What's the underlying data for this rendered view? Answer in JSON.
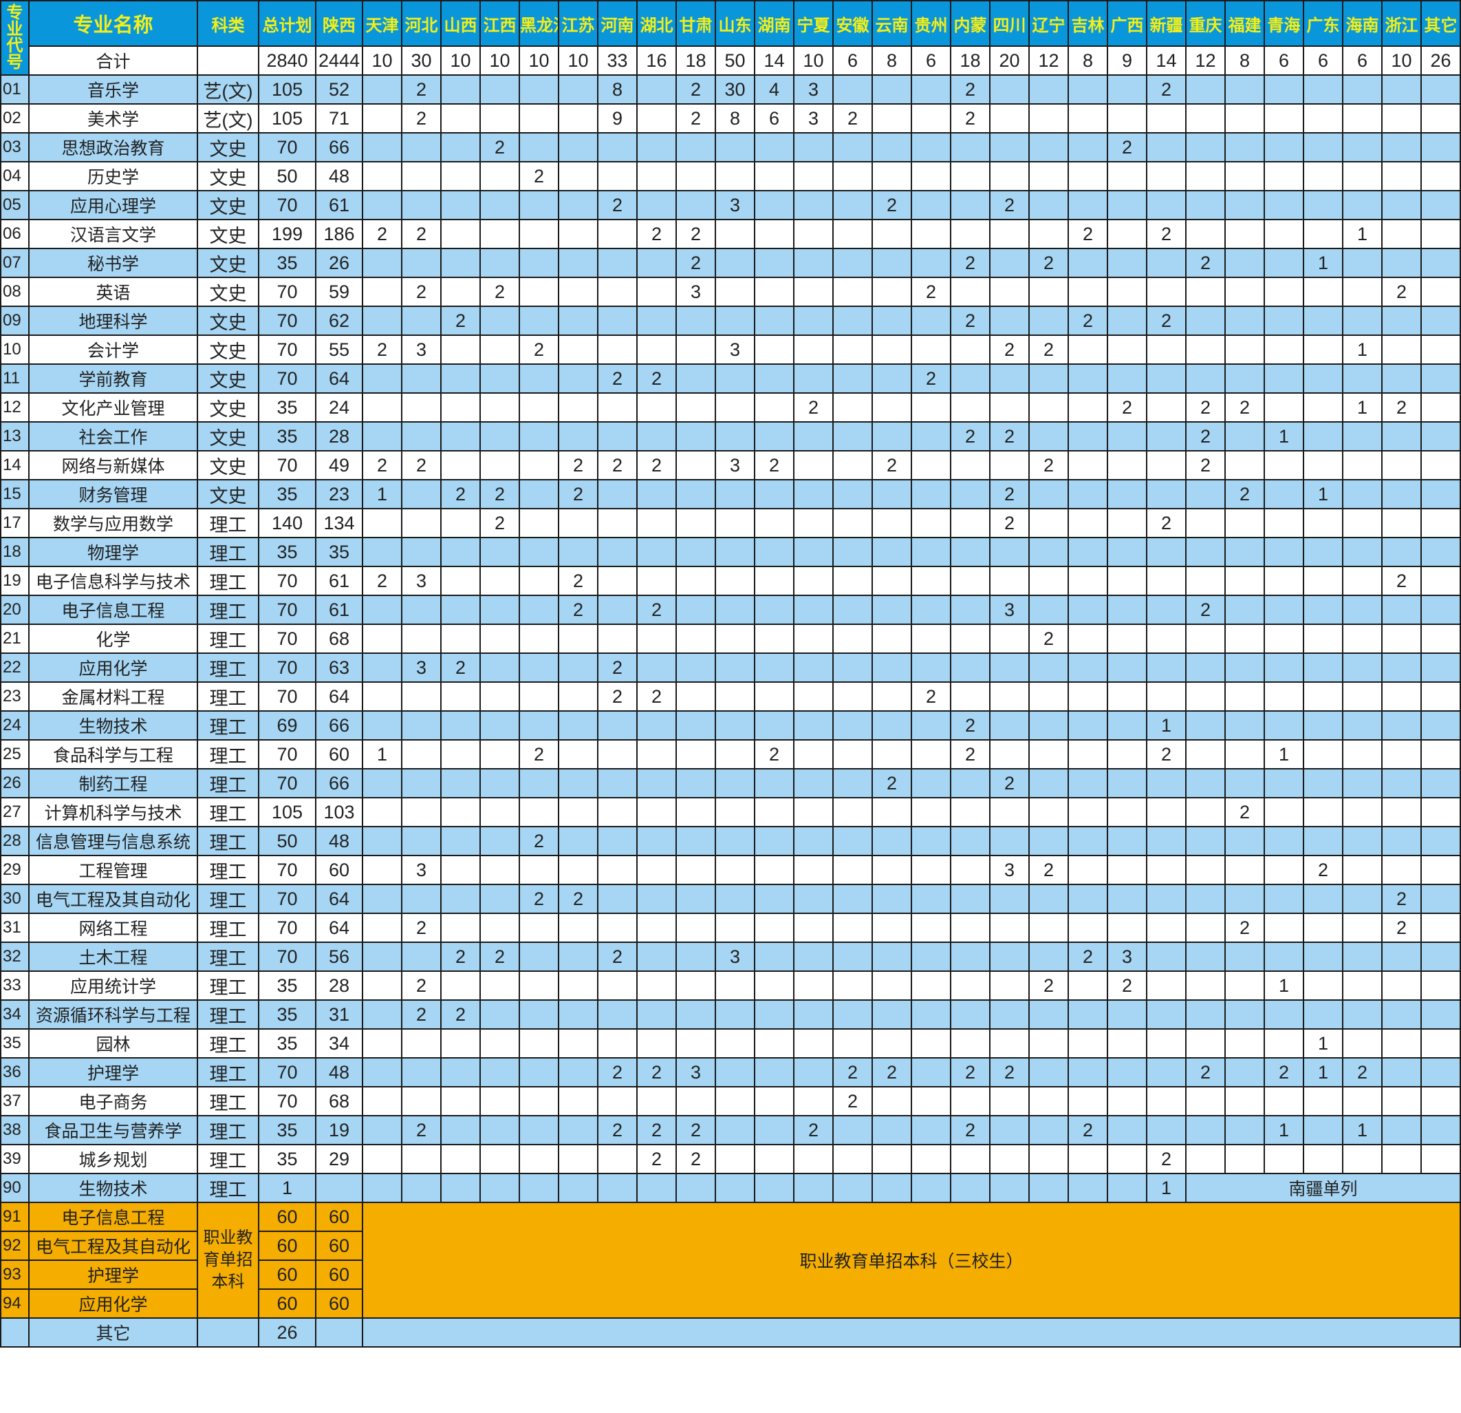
{
  "header": {
    "code": "专业代号",
    "name": "专业名称",
    "category": "科类",
    "total": "总计划",
    "shaanxi": "陕西",
    "provinces": [
      "天津",
      "河北",
      "山西",
      "江西",
      "黑龙江",
      "江苏",
      "河南",
      "湖北",
      "甘肃",
      "山东",
      "湖南",
      "宁夏",
      "安徽",
      "云南",
      "贵州",
      "内蒙",
      "四川",
      "辽宁",
      "吉林",
      "广西",
      "新疆",
      "重庆",
      "福建",
      "青海",
      "广东",
      "海南",
      "浙江",
      "其它"
    ]
  },
  "totals_row": {
    "label": "合计",
    "total": "2840",
    "shaanxi": "2444",
    "quotas": {
      "天津": "10",
      "河北": "30",
      "山西": "10",
      "江西": "10",
      "黑龙江": "10",
      "江苏": "10",
      "河南": "33",
      "湖北": "16",
      "甘肃": "18",
      "山东": "50",
      "湖南": "14",
      "宁夏": "10",
      "安徽": "6",
      "云南": "8",
      "贵州": "6",
      "内蒙": "18",
      "四川": "20",
      "辽宁": "12",
      "吉林": "8",
      "广西": "9",
      "新疆": "14",
      "重庆": "12",
      "福建": "8",
      "青海": "6",
      "广东": "6",
      "海南": "6",
      "浙江": "10",
      "其它": "26"
    }
  },
  "rows": [
    {
      "code": "01",
      "name": "音乐学",
      "category": "艺(文)",
      "total": "105",
      "shaanxi": "52",
      "quotas": {
        "河北": "2",
        "河南": "8",
        "甘肃": "2",
        "山东": "30",
        "湖南": "4",
        "宁夏": "3",
        "内蒙": "2",
        "新疆": "2"
      }
    },
    {
      "code": "02",
      "name": "美术学",
      "category": "艺(文)",
      "total": "105",
      "shaanxi": "71",
      "quotas": {
        "河北": "2",
        "河南": "9",
        "甘肃": "2",
        "山东": "8",
        "湖南": "6",
        "宁夏": "3",
        "安徽": "2",
        "内蒙": "2"
      }
    },
    {
      "code": "03",
      "name": "思想政治教育",
      "category": "文史",
      "total": "70",
      "shaanxi": "66",
      "quotas": {
        "江西": "2",
        "广西": "2"
      }
    },
    {
      "code": "04",
      "name": "历史学",
      "category": "文史",
      "total": "50",
      "shaanxi": "48",
      "quotas": {
        "黑龙江": "2"
      }
    },
    {
      "code": "05",
      "name": "应用心理学",
      "category": "文史",
      "total": "70",
      "shaanxi": "61",
      "quotas": {
        "河南": "2",
        "山东": "3",
        "云南": "2",
        "四川": "2"
      }
    },
    {
      "code": "06",
      "name": "汉语言文学",
      "category": "文史",
      "total": "199",
      "shaanxi": "186",
      "quotas": {
        "天津": "2",
        "河北": "2",
        "湖北": "2",
        "甘肃": "2",
        "吉林": "2",
        "新疆": "2",
        "海南": "1"
      }
    },
    {
      "code": "07",
      "name": "秘书学",
      "category": "文史",
      "total": "35",
      "shaanxi": "26",
      "quotas": {
        "甘肃": "2",
        "内蒙": "2",
        "辽宁": "2",
        "重庆": "2",
        "广东": "1"
      }
    },
    {
      "code": "08",
      "name": "英语",
      "category": "文史",
      "total": "70",
      "shaanxi": "59",
      "quotas": {
        "河北": "2",
        "江西": "2",
        "甘肃": "3",
        "贵州": "2",
        "浙江": "2"
      }
    },
    {
      "code": "09",
      "name": "地理科学",
      "category": "文史",
      "total": "70",
      "shaanxi": "62",
      "quotas": {
        "山西": "2",
        "内蒙": "2",
        "吉林": "2",
        "新疆": "2"
      }
    },
    {
      "code": "10",
      "name": "会计学",
      "category": "文史",
      "total": "70",
      "shaanxi": "55",
      "quotas": {
        "天津": "2",
        "河北": "3",
        "黑龙江": "2",
        "山东": "3",
        "四川": "2",
        "辽宁": "2",
        "海南": "1"
      }
    },
    {
      "code": "11",
      "name": "学前教育",
      "category": "文史",
      "total": "70",
      "shaanxi": "64",
      "quotas": {
        "河南": "2",
        "湖北": "2",
        "贵州": "2"
      }
    },
    {
      "code": "12",
      "name": "文化产业管理",
      "category": "文史",
      "total": "35",
      "shaanxi": "24",
      "quotas": {
        "宁夏": "2",
        "广西": "2",
        "重庆": "2",
        "福建": "2",
        "海南": "1",
        "浙江": "2"
      }
    },
    {
      "code": "13",
      "name": "社会工作",
      "category": "文史",
      "total": "35",
      "shaanxi": "28",
      "quotas": {
        "内蒙": "2",
        "四川": "2",
        "重庆": "2",
        "青海": "1"
      }
    },
    {
      "code": "14",
      "name": "网络与新媒体",
      "category": "文史",
      "total": "70",
      "shaanxi": "49",
      "quotas": {
        "天津": "2",
        "河北": "2",
        "江苏": "2",
        "河南": "2",
        "湖北": "2",
        "山东": "3",
        "湖南": "2",
        "云南": "2",
        "辽宁": "2",
        "重庆": "2"
      }
    },
    {
      "code": "15",
      "name": "财务管理",
      "category": "文史",
      "total": "35",
      "shaanxi": "23",
      "quotas": {
        "天津": "1",
        "山西": "2",
        "江西": "2",
        "江苏": "2",
        "四川": "2",
        "福建": "2",
        "广东": "1"
      }
    },
    {
      "code": "17",
      "name": "数学与应用数学",
      "category": "理工",
      "total": "140",
      "shaanxi": "134",
      "quotas": {
        "江西": "2",
        "四川": "2",
        "新疆": "2"
      }
    },
    {
      "code": "18",
      "name": "物理学",
      "category": "理工",
      "total": "35",
      "shaanxi": "35",
      "quotas": {}
    },
    {
      "code": "19",
      "name": "电子信息科学与技术",
      "category": "理工",
      "total": "70",
      "shaanxi": "61",
      "quotas": {
        "天津": "2",
        "河北": "3",
        "江苏": "2",
        "浙江": "2"
      }
    },
    {
      "code": "20",
      "name": "电子信息工程",
      "category": "理工",
      "total": "70",
      "shaanxi": "61",
      "quotas": {
        "江苏": "2",
        "湖北": "2",
        "四川": "3",
        "重庆": "2"
      }
    },
    {
      "code": "21",
      "name": "化学",
      "category": "理工",
      "total": "70",
      "shaanxi": "68",
      "quotas": {
        "辽宁": "2"
      }
    },
    {
      "code": "22",
      "name": "应用化学",
      "category": "理工",
      "total": "70",
      "shaanxi": "63",
      "quotas": {
        "河北": "3",
        "山西": "2",
        "河南": "2"
      }
    },
    {
      "code": "23",
      "name": "金属材料工程",
      "category": "理工",
      "total": "70",
      "shaanxi": "64",
      "quotas": {
        "河南": "2",
        "湖北": "2",
        "贵州": "2"
      }
    },
    {
      "code": "24",
      "name": "生物技术",
      "category": "理工",
      "total": "69",
      "shaanxi": "66",
      "quotas": {
        "内蒙": "2",
        "新疆": "1"
      }
    },
    {
      "code": "25",
      "name": "食品科学与工程",
      "category": "理工",
      "total": "70",
      "shaanxi": "60",
      "quotas": {
        "天津": "1",
        "黑龙江": "2",
        "湖南": "2",
        "内蒙": "2",
        "新疆": "2",
        "青海": "1"
      }
    },
    {
      "code": "26",
      "name": "制药工程",
      "category": "理工",
      "total": "70",
      "shaanxi": "66",
      "quotas": {
        "云南": "2",
        "四川": "2"
      }
    },
    {
      "code": "27",
      "name": "计算机科学与技术",
      "category": "理工",
      "total": "105",
      "shaanxi": "103",
      "quotas": {
        "福建": "2"
      }
    },
    {
      "code": "28",
      "name": "信息管理与信息系统",
      "category": "理工",
      "total": "50",
      "shaanxi": "48",
      "quotas": {
        "黑龙江": "2"
      }
    },
    {
      "code": "29",
      "name": "工程管理",
      "category": "理工",
      "total": "70",
      "shaanxi": "60",
      "quotas": {
        "河北": "3",
        "四川": "3",
        "辽宁": "2",
        "广东": "2"
      }
    },
    {
      "code": "30",
      "name": "电气工程及其自动化",
      "category": "理工",
      "total": "70",
      "shaanxi": "64",
      "quotas": {
        "黑龙江": "2",
        "江苏": "2",
        "浙江": "2"
      }
    },
    {
      "code": "31",
      "name": "网络工程",
      "category": "理工",
      "total": "70",
      "shaanxi": "64",
      "quotas": {
        "河北": "2",
        "福建": "2",
        "浙江": "2"
      }
    },
    {
      "code": "32",
      "name": "土木工程",
      "category": "理工",
      "total": "70",
      "shaanxi": "56",
      "quotas": {
        "山西": "2",
        "江西": "2",
        "河南": "2",
        "山东": "3",
        "吉林": "2",
        "广西": "3"
      }
    },
    {
      "code": "33",
      "name": "应用统计学",
      "category": "理工",
      "total": "35",
      "shaanxi": "28",
      "quotas": {
        "河北": "2",
        "辽宁": "2",
        "广西": "2",
        "青海": "1"
      }
    },
    {
      "code": "34",
      "name": "资源循环科学与工程",
      "category": "理工",
      "total": "35",
      "shaanxi": "31",
      "quotas": {
        "河北": "2",
        "山西": "2"
      }
    },
    {
      "code": "35",
      "name": "园林",
      "category": "理工",
      "total": "35",
      "shaanxi": "34",
      "quotas": {
        "广东": "1"
      }
    },
    {
      "code": "36",
      "name": "护理学",
      "category": "理工",
      "total": "70",
      "shaanxi": "48",
      "quotas": {
        "河南": "2",
        "湖北": "2",
        "甘肃": "3",
        "安徽": "2",
        "云南": "2",
        "内蒙": "2",
        "四川": "2",
        "重庆": "2",
        "青海": "2",
        "广东": "1",
        "海南": "2"
      }
    },
    {
      "code": "37",
      "name": "电子商务",
      "category": "理工",
      "total": "70",
      "shaanxi": "68",
      "quotas": {
        "安徽": "2"
      }
    },
    {
      "code": "38",
      "name": "食品卫生与营养学",
      "category": "理工",
      "total": "35",
      "shaanxi": "19",
      "quotas": {
        "河北": "2",
        "河南": "2",
        "湖北": "2",
        "甘肃": "2",
        "宁夏": "2",
        "内蒙": "2",
        "吉林": "2",
        "青海": "1",
        "海南": "1"
      }
    },
    {
      "code": "39",
      "name": "城乡规划",
      "category": "理工",
      "total": "35",
      "shaanxi": "29",
      "quotas": {
        "湖北": "2",
        "甘肃": "2",
        "新疆": "2"
      }
    }
  ],
  "south_xinjiang_row": {
    "code": "90",
    "name": "生物技术",
    "category": "理工",
    "total": "1",
    "shaanxi": "",
    "xinjiang": "1",
    "note": "南疆单列"
  },
  "vocational": {
    "category": "职业教育单招本科",
    "note": "职业教育单招本科（三校生）",
    "rows": [
      {
        "code": "91",
        "name": "电子信息工程",
        "total": "60",
        "shaanxi": "60"
      },
      {
        "code": "92",
        "name": "电气工程及其自动化",
        "total": "60",
        "shaanxi": "60"
      },
      {
        "code": "93",
        "name": "护理学",
        "total": "60",
        "shaanxi": "60"
      },
      {
        "code": "94",
        "name": "应用化学",
        "total": "60",
        "shaanxi": "60"
      }
    ]
  },
  "other_row": {
    "name": "其它",
    "total": "26"
  },
  "colors": {
    "header_bg": "#0a96db",
    "header_text": "#f3ef17",
    "row_blue": "#a6d6f4",
    "vocational_orange": "#f5ad00"
  }
}
